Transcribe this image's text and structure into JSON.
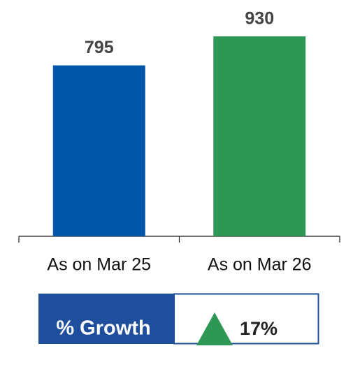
{
  "chart_data": {
    "type": "bar",
    "categories": [
      "As on Mar 25",
      "As on Mar 26"
    ],
    "values": [
      795,
      930
    ],
    "colors": [
      "#0057a8",
      "#2e9756"
    ],
    "ylim": [
      0,
      1000
    ],
    "growth": {
      "label": "% Growth",
      "value": "17%"
    }
  }
}
